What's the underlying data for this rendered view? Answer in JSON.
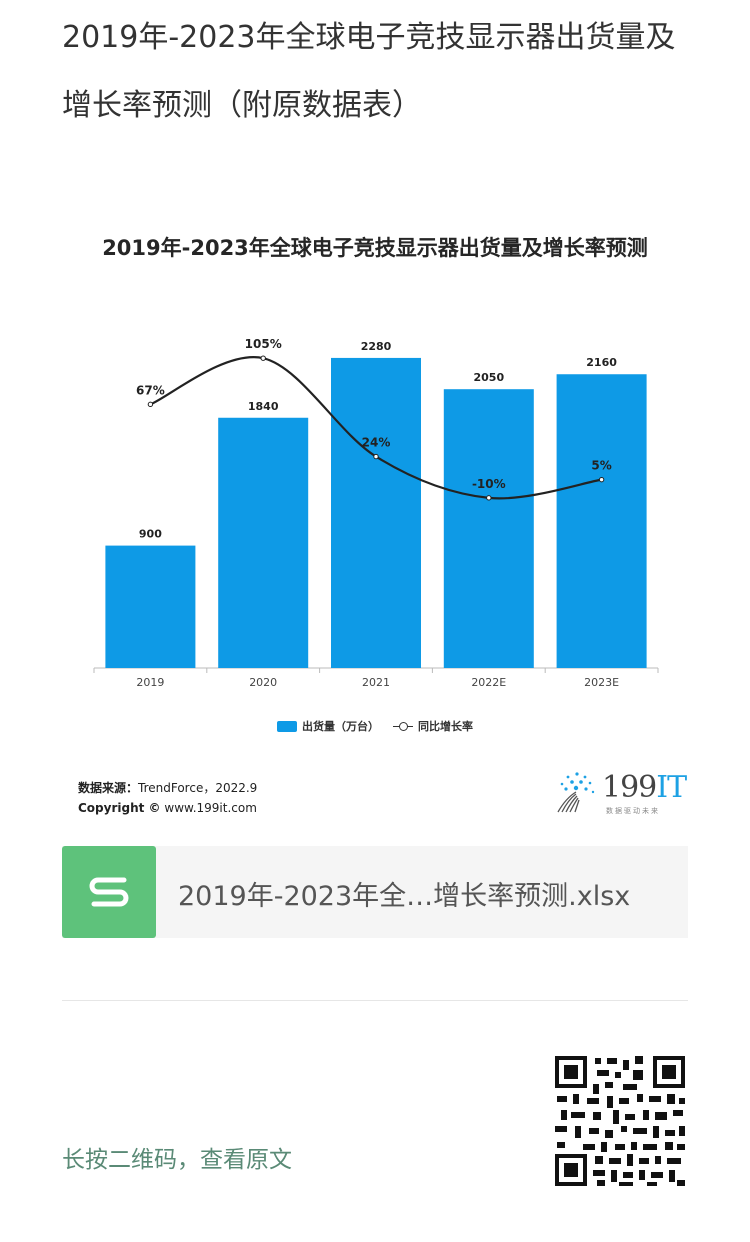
{
  "article": {
    "title": "2019年-2023年全球电子竞技显示器出货量及增长率预测（附原数据表）"
  },
  "chart_data": {
    "type": "bar",
    "title": "2019年-2023年全球电子竞技显示器出货量及增长率预测",
    "categories": [
      "2019",
      "2020",
      "2021",
      "2022E",
      "2023E"
    ],
    "series": [
      {
        "name": "出货量（万台）",
        "type": "bar",
        "color": "#0e9ae6",
        "values": [
          900,
          1840,
          2280,
          2050,
          2160
        ]
      },
      {
        "name": "同比增长率",
        "type": "line",
        "color": "#222222",
        "values": [
          67,
          105,
          24,
          -10,
          5
        ],
        "labels": [
          "67%",
          "105%",
          "24%",
          "-10%",
          "5%"
        ]
      }
    ],
    "ylim": [
      0,
      2500
    ],
    "y2lim": [
      -20,
      120
    ],
    "grid": false,
    "legend_position": "bottom",
    "source": {
      "label": "数据来源：",
      "value": "TrendForce，2022.9"
    },
    "copyright": {
      "label": "Copyright ©",
      "value": "www.199it.com"
    }
  },
  "brand": {
    "name_prefix": "199",
    "name_suffix": "IT",
    "tagline": "数据驱动未来"
  },
  "file": {
    "name": "2019年-2023年全…增长率预测.xlsx",
    "icon": "spreadsheet-s-icon",
    "icon_color": "#5ec27b"
  },
  "footer": {
    "long_press_text": "长按二维码，查看原文",
    "qr_icon": "qr-code-icon"
  }
}
